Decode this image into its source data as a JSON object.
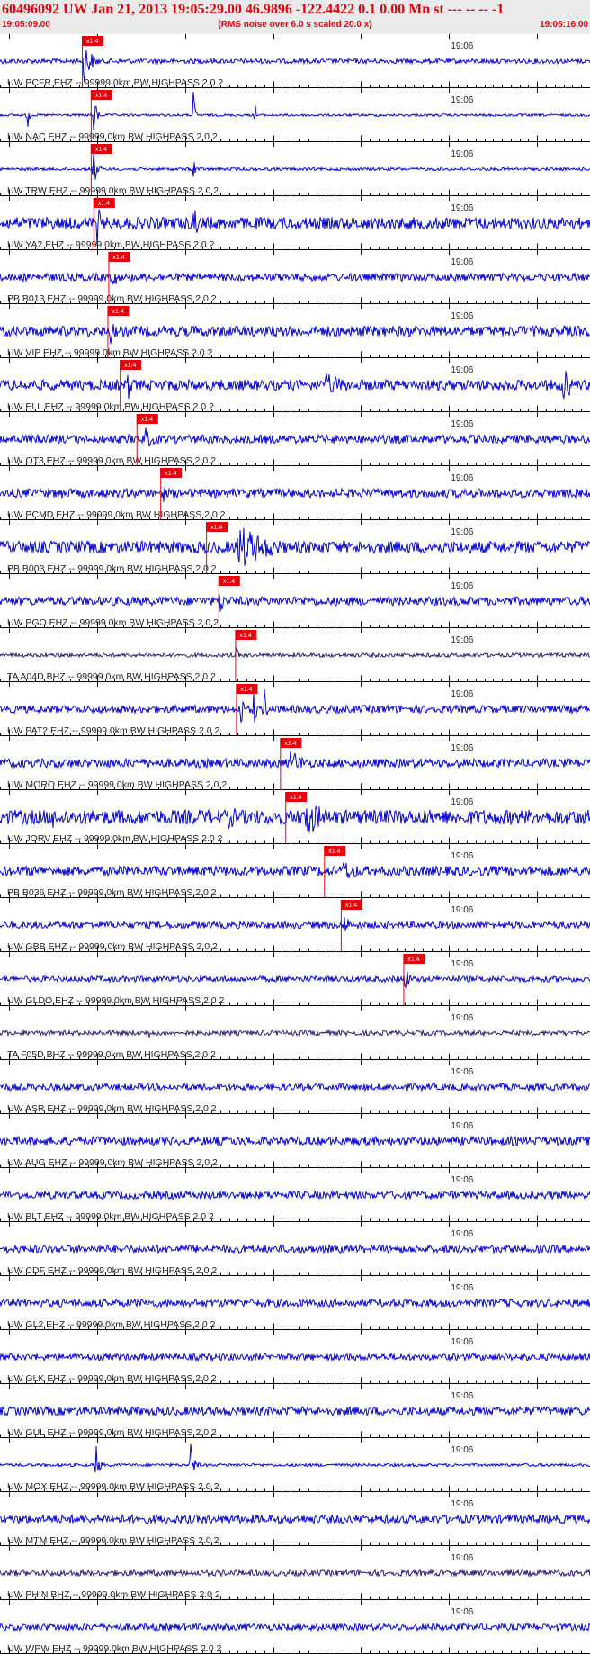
{
  "header": {
    "title": "60496092 UW Jan 21, 2013 19:05:29.00   46.9896 -122.4422  0.1 0.00 Mn st --- -- --   -1",
    "start_time": "19:05:09.00",
    "noise_note": "(RMS noise over 6.0 s scaled 20.0 x)",
    "end_time": "19:06:16.00"
  },
  "chart_data": {
    "type": "line",
    "title": "60496092 UW Jan 21, 2013 19:05:29.00   46.9896 -122.4422  0.1 0.00 Mn st --- -- --   -1",
    "xlabel": "",
    "ylabel": "",
    "x_range_seconds": [
      0,
      67
    ],
    "tick_label": "19:06",
    "tick_label_time_s": 51,
    "pick_label": "x1.4",
    "colors": {
      "trace": "#0000e0",
      "trace_dark": "#2a1a7a",
      "pick": "#e8000b",
      "axis": "#000000",
      "header_text": "#e8000b"
    },
    "traces": [
      {
        "label": "UW PCFR EHZ -- 99999.0km BW  HIGHPASS  2.0  2",
        "pick": 9.3,
        "color": "blue",
        "noise": 0.1,
        "bursts": [
          [
            9.5,
            1.6,
            1.0
          ]
        ]
      },
      {
        "label": "UW NAC EHZ -- 99999.0km BW  HIGHPASS  2.0  2",
        "pick": 10.3,
        "color": "blue",
        "noise": 0.05,
        "bursts": [
          [
            3.2,
            0.2,
            0.8
          ],
          [
            10.6,
            0.7,
            0.9
          ],
          [
            22.0,
            0.3,
            1.0
          ],
          [
            29.0,
            0.2,
            0.5
          ]
        ]
      },
      {
        "label": "UW TRW EHZ -- 99999.0km BW  HIGHPASS  2.0  2",
        "pick": 10.3,
        "color": "blue",
        "noise": 0.06,
        "bursts": [
          [
            10.6,
            0.8,
            0.8
          ],
          [
            22.0,
            0.6,
            0.5
          ]
        ]
      },
      {
        "label": "UW YA2 EHZ -- 99999.0km BW  HIGHPASS  2.0  2",
        "pick": 10.6,
        "color": "blue",
        "noise": 0.25,
        "bursts": [
          [
            11.0,
            0.8,
            1.0
          ],
          [
            22.0,
            0.8,
            1.0
          ]
        ]
      },
      {
        "label": "PB B013 EHZ -- 99999.0km BW  HIGHPASS  2.0  2",
        "pick": 12.3,
        "color": "blue",
        "noise": 0.16,
        "bursts": [
          [
            12.8,
            1.0,
            0.6
          ]
        ]
      },
      {
        "label": "UW VIP EHZ -- 99999.0km BW  HIGHPASS  2.0  2",
        "pick": 12.2,
        "color": "blue",
        "noise": 0.22,
        "bursts": [
          [
            12.6,
            1.0,
            0.6
          ]
        ]
      },
      {
        "label": "UW ELL EHZ -- 99999.0km BW  HIGHPASS  2.0  2",
        "pick": 13.6,
        "color": "blue",
        "noise": 0.22,
        "bursts": [
          [
            14.5,
            1.2,
            0.7
          ],
          [
            37.0,
            6.0,
            0.5
          ],
          [
            64.0,
            1.5,
            0.9
          ]
        ]
      },
      {
        "label": "UW OT3 EHZ -- 99999.0km BW  HIGHPASS  2.0  2",
        "pick": 15.5,
        "color": "blue",
        "noise": 0.18,
        "bursts": [
          [
            16.5,
            2.0,
            0.5
          ]
        ]
      },
      {
        "label": "UW PCMD EHZ -- 99999.0km BW  HIGHPASS  2.0  2",
        "pick": 18.2,
        "color": "blue",
        "noise": 0.18,
        "bursts": [
          [
            7.0,
            2.0,
            0.3
          ],
          [
            18.5,
            0.6,
            0.5
          ]
        ]
      },
      {
        "label": "PB B003 EHZ -- 99999.0km BW  HIGHPASS  2.0  2",
        "pick": 23.4,
        "color": "blue",
        "noise": 0.25,
        "bursts": [
          [
            27.0,
            7.0,
            1.0
          ]
        ]
      },
      {
        "label": "UW PGO EHZ -- 99999.0km BW  HIGHPASS  2.0  2",
        "pick": 24.8,
        "color": "blue",
        "noise": 0.18,
        "bursts": [
          [
            25.0,
            0.8,
            0.7
          ]
        ]
      },
      {
        "label": "TA A04D BHZ -- 99999.0km BW  HIGHPASS  2.0  2",
        "pick": 26.7,
        "color": "dark",
        "noise": 0.08,
        "bursts": [
          [
            26.8,
            0.5,
            0.4
          ]
        ]
      },
      {
        "label": "UW PAT2 EHZ -- 99999.0km BW  HIGHPASS  2.0  2",
        "pick": 26.8,
        "color": "blue",
        "noise": 0.16,
        "bursts": [
          [
            27.4,
            0.4,
            1.0
          ],
          [
            28.8,
            0.5,
            1.0
          ],
          [
            30.0,
            0.5,
            1.0
          ]
        ]
      },
      {
        "label": "UW MORO EHZ -- 99999.0km BW  HIGHPASS  2.0  2",
        "pick": 31.8,
        "color": "blue",
        "noise": 0.18,
        "bursts": [
          [
            33.0,
            3.0,
            0.6
          ]
        ]
      },
      {
        "label": "UW JORV EHZ -- 99999.0km BW  HIGHPASS  2.0  2",
        "pick": 32.4,
        "color": "blue",
        "noise": 0.3,
        "bursts": [
          [
            6.0,
            0.4,
            0.6
          ],
          [
            26.0,
            4.0,
            0.5
          ],
          [
            34.5,
            4.0,
            1.0
          ],
          [
            65.0,
            1.5,
            0.4
          ]
        ]
      },
      {
        "label": "PB B036 EHZ -- 99999.0km BW  HIGHPASS  2.0  2",
        "pick": 36.8,
        "color": "blue",
        "noise": 0.2,
        "bursts": [
          [
            39.0,
            4.0,
            0.5
          ]
        ]
      },
      {
        "label": "UW GBB EHZ -- 99999.0km BW  HIGHPASS  2.0  2",
        "pick": 38.7,
        "color": "blue",
        "noise": 0.14,
        "bursts": [
          [
            22.0,
            0.5,
            0.3
          ],
          [
            39.0,
            1.2,
            0.6
          ]
        ]
      },
      {
        "label": "UW GLDO EHZ -- 99999.0km BW  HIGHPASS  2.0  2",
        "pick": 45.8,
        "color": "blue",
        "noise": 0.12,
        "bursts": [
          [
            46.0,
            0.8,
            0.7
          ]
        ]
      },
      {
        "label": "TA F05D BHZ -- 99999.0km BW  HIGHPASS  2.0  2",
        "color": "dark",
        "noise": 0.1,
        "bursts": [
          [
            17.0,
            1.5,
            0.2
          ]
        ]
      },
      {
        "label": "UW ASR EHZ -- 99999.0km BW  HIGHPASS  2.0  2",
        "color": "blue",
        "noise": 0.14,
        "bursts": []
      },
      {
        "label": "UW AUG EHZ -- 99999.0km BW  HIGHPASS  2.0  2",
        "color": "blue",
        "noise": 0.18,
        "bursts": []
      },
      {
        "label": "UW BLT EHZ -- 99999.0km BW  HIGHPASS  2.0  2",
        "color": "blue",
        "noise": 0.16,
        "bursts": []
      },
      {
        "label": "UW CDF EHZ -- 99999.0km BW  HIGHPASS  2.0  2",
        "color": "blue",
        "noise": 0.16,
        "bursts": []
      },
      {
        "label": "UW GL2 EHZ -- 99999.0km BW  HIGHPASS  2.0  2",
        "color": "blue",
        "noise": 0.16,
        "bursts": []
      },
      {
        "label": "UW GLK EHZ -- 99999.0km BW  HIGHPASS  2.0  2",
        "color": "blue",
        "noise": 0.14,
        "bursts": []
      },
      {
        "label": "UW GUL EHZ -- 99999.0km BW  HIGHPASS  2.0  2",
        "color": "blue",
        "noise": 0.18,
        "bursts": []
      },
      {
        "label": "UW MOX EHZ -- 99999.0km BW  HIGHPASS  2.0  2",
        "color": "blue",
        "noise": 0.06,
        "bursts": [
          [
            10.9,
            0.6,
            0.9
          ],
          [
            21.7,
            0.7,
            0.9
          ]
        ]
      },
      {
        "label": "UW MTM EHZ -- 99999.0km BW  HIGHPASS  2.0  2",
        "color": "blue",
        "noise": 0.18,
        "bursts": []
      },
      {
        "label": "UW PHIN BHZ -- 99999.0km BW  HIGHPASS  2.0  2",
        "color": "dark",
        "noise": 0.12,
        "bursts": []
      },
      {
        "label": "UW WPW EHZ -- 99999.0km BW  HIGHPASS  2.0  2",
        "color": "blue",
        "noise": 0.14,
        "bursts": []
      }
    ]
  }
}
